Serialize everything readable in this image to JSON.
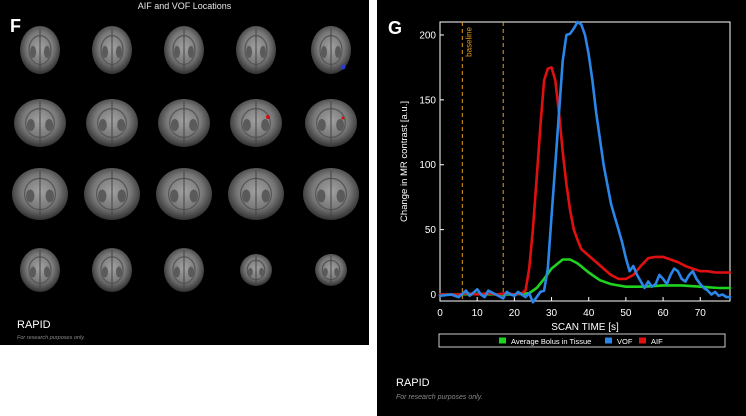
{
  "panel_f": {
    "letter": "F",
    "title": "AIF and VOF Locations",
    "brand": "RAPID",
    "disclaimer": "For research purposes only."
  },
  "panel_g": {
    "letter": "G",
    "brand": "RAPID",
    "disclaimer": "For research purposes only."
  },
  "chart_data": {
    "type": "line",
    "xlabel": "SCAN TIME [s]",
    "ylabel": "Change in MR contrast [a.u.]",
    "xlim": [
      0,
      78
    ],
    "ylim": [
      -5,
      210
    ],
    "xticks": [
      0,
      10,
      20,
      30,
      40,
      50,
      60,
      70
    ],
    "yticks": [
      0,
      50,
      100,
      150,
      200
    ],
    "legend_position": "bottom",
    "baseline": {
      "label": "baseline",
      "x": [
        6,
        17
      ],
      "color": "#e39b1e"
    },
    "series": [
      {
        "name": "Average Bolus in Tissue",
        "color": "#1fd21f",
        "points": [
          [
            0,
            0
          ],
          [
            5,
            0
          ],
          [
            10,
            0.5
          ],
          [
            15,
            0
          ],
          [
            20,
            0
          ],
          [
            24,
            1
          ],
          [
            26,
            5
          ],
          [
            28,
            12
          ],
          [
            30,
            20
          ],
          [
            33,
            27
          ],
          [
            35,
            27
          ],
          [
            37,
            24
          ],
          [
            40,
            17
          ],
          [
            43,
            11
          ],
          [
            46,
            8
          ],
          [
            50,
            6
          ],
          [
            55,
            6
          ],
          [
            60,
            7
          ],
          [
            65,
            7
          ],
          [
            70,
            6
          ],
          [
            75,
            5
          ],
          [
            78,
            5
          ]
        ]
      },
      {
        "name": "VOF",
        "color": "#2a86e8",
        "points": [
          [
            0,
            -1
          ],
          [
            3,
            0
          ],
          [
            5,
            -2
          ],
          [
            7,
            3
          ],
          [
            8,
            -1
          ],
          [
            10,
            4
          ],
          [
            11,
            0
          ],
          [
            12,
            -2
          ],
          [
            13,
            3
          ],
          [
            15,
            0
          ],
          [
            17,
            -3
          ],
          [
            18,
            2
          ],
          [
            19,
            0
          ],
          [
            20,
            -1
          ],
          [
            21,
            2
          ],
          [
            22,
            0
          ],
          [
            23,
            -2
          ],
          [
            24,
            1
          ],
          [
            25,
            -6
          ],
          [
            26,
            -2
          ],
          [
            27,
            2
          ],
          [
            28,
            3
          ],
          [
            29,
            20
          ],
          [
            30,
            60
          ],
          [
            31,
            100
          ],
          [
            32,
            140
          ],
          [
            33,
            180
          ],
          [
            34,
            200
          ],
          [
            35,
            201
          ],
          [
            36,
            205
          ],
          [
            37,
            210
          ],
          [
            38,
            208
          ],
          [
            39,
            200
          ],
          [
            40,
            185
          ],
          [
            41,
            165
          ],
          [
            42,
            140
          ],
          [
            43,
            120
          ],
          [
            44,
            100
          ],
          [
            45,
            85
          ],
          [
            46,
            70
          ],
          [
            47,
            60
          ],
          [
            48,
            50
          ],
          [
            49,
            40
          ],
          [
            50,
            28
          ],
          [
            51,
            18
          ],
          [
            52,
            22
          ],
          [
            53,
            15
          ],
          [
            54,
            10
          ],
          [
            55,
            5
          ],
          [
            56,
            10
          ],
          [
            57,
            6
          ],
          [
            58,
            8
          ],
          [
            59,
            15
          ],
          [
            60,
            12
          ],
          [
            61,
            8
          ],
          [
            62,
            15
          ],
          [
            63,
            20
          ],
          [
            64,
            18
          ],
          [
            65,
            12
          ],
          [
            66,
            10
          ],
          [
            67,
            15
          ],
          [
            68,
            18
          ],
          [
            69,
            12
          ],
          [
            70,
            8
          ],
          [
            71,
            5
          ],
          [
            72,
            3
          ],
          [
            73,
            0
          ],
          [
            74,
            2
          ],
          [
            75,
            -1
          ],
          [
            76,
            0
          ],
          [
            77,
            -2
          ],
          [
            78,
            -2
          ]
        ]
      },
      {
        "name": "AIF",
        "color": "#e01010",
        "points": [
          [
            0,
            0
          ],
          [
            5,
            0
          ],
          [
            7,
            1
          ],
          [
            10,
            0
          ],
          [
            13,
            1
          ],
          [
            15,
            0
          ],
          [
            18,
            1
          ],
          [
            20,
            0
          ],
          [
            22,
            1
          ],
          [
            23,
            3
          ],
          [
            24,
            20
          ],
          [
            25,
            50
          ],
          [
            26,
            90
          ],
          [
            27,
            130
          ],
          [
            28,
            165
          ],
          [
            29,
            174
          ],
          [
            30,
            175
          ],
          [
            31,
            165
          ],
          [
            32,
            140
          ],
          [
            33,
            110
          ],
          [
            34,
            85
          ],
          [
            35,
            65
          ],
          [
            36,
            50
          ],
          [
            37,
            42
          ],
          [
            38,
            35
          ],
          [
            40,
            30
          ],
          [
            42,
            25
          ],
          [
            44,
            20
          ],
          [
            46,
            15
          ],
          [
            48,
            12
          ],
          [
            50,
            12
          ],
          [
            52,
            15
          ],
          [
            54,
            22
          ],
          [
            56,
            28
          ],
          [
            58,
            29
          ],
          [
            60,
            29
          ],
          [
            62,
            27
          ],
          [
            64,
            25
          ],
          [
            66,
            22
          ],
          [
            68,
            20
          ],
          [
            70,
            18
          ],
          [
            72,
            18
          ],
          [
            74,
            17
          ],
          [
            78,
            17
          ]
        ]
      }
    ]
  }
}
